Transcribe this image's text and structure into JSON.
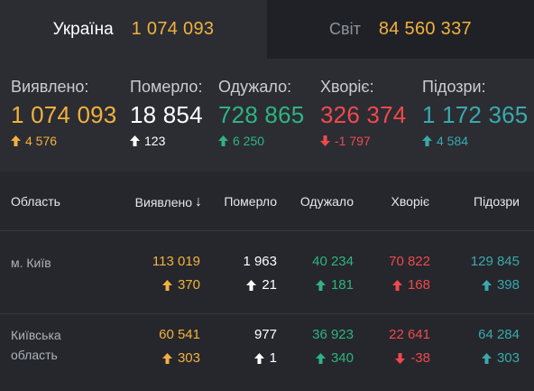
{
  "tabs": {
    "ukraine": {
      "label": "Україна",
      "value": "1 074 093"
    },
    "world": {
      "label": "Світ",
      "value": "84 560 337"
    }
  },
  "summary": [
    {
      "label": "Виявлено:",
      "value": "1 074 093",
      "delta": "4 576",
      "direction": "up",
      "color": "#f3b13e"
    },
    {
      "label": "Померло:",
      "value": "18 854",
      "delta": "123",
      "direction": "up",
      "color": "#ffffff"
    },
    {
      "label": "Одужало:",
      "value": "728 865",
      "delta": "6 250",
      "direction": "up",
      "color": "#2fb481"
    },
    {
      "label": "Хворіє:",
      "value": "326 374",
      "delta": "-1 797",
      "direction": "down",
      "color": "#f0494d"
    },
    {
      "label": "Підозри:",
      "value": "1 172 365",
      "delta": "4 584",
      "direction": "up",
      "color": "#3aa9ad"
    }
  ],
  "table": {
    "headers": {
      "region": "Область",
      "detected": "Виявлено",
      "sort_icon": "↓",
      "died": "Померло",
      "recovered": "Одужало",
      "sick": "Хворіє",
      "suspected": "Підозри"
    },
    "rows": [
      {
        "region_line1": "м. Київ",
        "region_line2": "",
        "detected": "113 019",
        "detected_delta": "370",
        "died": "1 963",
        "died_delta": "21",
        "recovered": "40 234",
        "recovered_delta": "181",
        "sick": "70 822",
        "sick_delta": "168",
        "sick_direction": "up",
        "suspected": "129 845",
        "suspected_delta": "398"
      },
      {
        "region_line1": "Київська",
        "region_line2": "область",
        "detected": "60 541",
        "detected_delta": "303",
        "died": "977",
        "died_delta": "1",
        "recovered": "36 923",
        "recovered_delta": "340",
        "sick": "22 641",
        "sick_delta": "-38",
        "sick_direction": "down",
        "suspected": "64 284",
        "suspected_delta": "303"
      }
    ]
  },
  "colors": {
    "detected": "#f3b13e",
    "died": "#ffffff",
    "recovered": "#2fb481",
    "sick": "#f0494d",
    "suspected": "#3aa9ad"
  },
  "icons": {
    "up": "arrow-up-icon",
    "down": "arrow-down-icon"
  }
}
